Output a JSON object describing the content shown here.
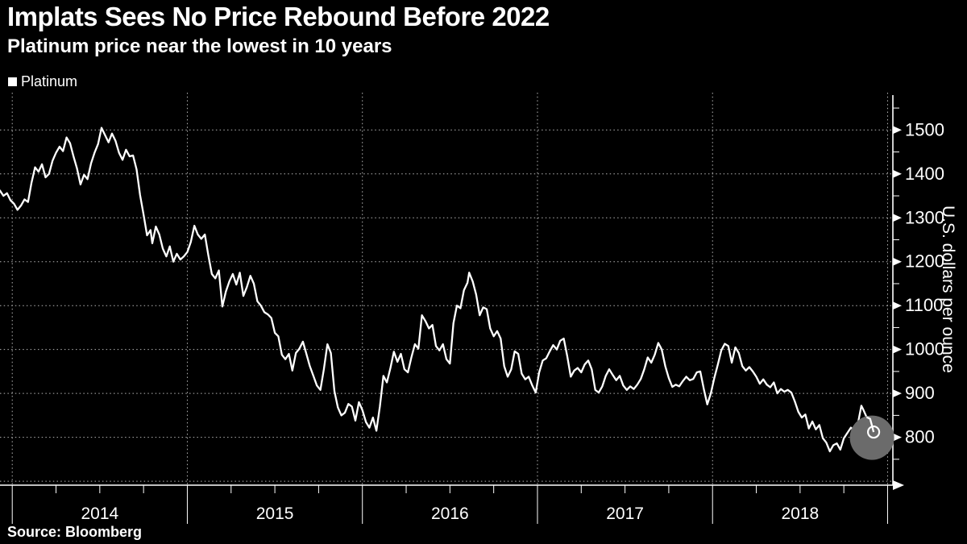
{
  "header": {
    "title": "Implats Sees No Price Rebound Before 2022",
    "subtitle": "Platinum price near the lowest in 10 years"
  },
  "legend": {
    "items": [
      {
        "label": "Platinum",
        "swatch_color": "#ffffff"
      }
    ]
  },
  "source": {
    "text": "Source: Bloomberg"
  },
  "colors": {
    "background": "#000000",
    "foreground": "#ffffff",
    "grid": "#b5b5b5",
    "halo": "#6b6b6b"
  },
  "chart_data": {
    "type": "line",
    "title": "Implats Sees No Price Rebound Before 2022",
    "subtitle": "Platinum price near the lowest in 10 years",
    "xlabel": "",
    "ylabel": "U.S. dollars per ounce",
    "legend_position": "top-left",
    "grid": true,
    "xlim": [
      2013.93,
      2019.03
    ],
    "ylim": [
      691,
      1585
    ],
    "x_tick_labels": [
      "2014",
      "2015",
      "2016",
      "2017",
      "2018"
    ],
    "x_gridline_years": [
      2014,
      2015,
      2016,
      2017,
      2018,
      2019
    ],
    "x_minor_interval": 0.25,
    "y_ticks": [
      800,
      900,
      1000,
      1100,
      1200,
      1300,
      1400,
      1500
    ],
    "y_gridlines": [
      700,
      800,
      900,
      1000,
      1100,
      1200,
      1300,
      1400,
      1500
    ],
    "y_minor_ticks": [
      750,
      850,
      950,
      1050,
      1150,
      1250,
      1350,
      1450,
      1550
    ],
    "highlight": {
      "x": 2018.92,
      "value": 812
    },
    "series": [
      {
        "name": "Platinum",
        "color": "#ffffff",
        "points": [
          [
            2013.93,
            1362
          ],
          [
            2013.95,
            1350
          ],
          [
            2013.97,
            1356
          ],
          [
            2013.99,
            1340
          ],
          [
            2014.01,
            1332
          ],
          [
            2014.03,
            1318
          ],
          [
            2014.05,
            1328
          ],
          [
            2014.07,
            1342
          ],
          [
            2014.09,
            1336
          ],
          [
            2014.11,
            1380
          ],
          [
            2014.13,
            1415
          ],
          [
            2014.15,
            1405
          ],
          [
            2014.17,
            1422
          ],
          [
            2014.19,
            1392
          ],
          [
            2014.21,
            1400
          ],
          [
            2014.23,
            1430
          ],
          [
            2014.25,
            1448
          ],
          [
            2014.27,
            1462
          ],
          [
            2014.29,
            1452
          ],
          [
            2014.31,
            1483
          ],
          [
            2014.33,
            1470
          ],
          [
            2014.35,
            1440
          ],
          [
            2014.37,
            1412
          ],
          [
            2014.39,
            1376
          ],
          [
            2014.41,
            1398
          ],
          [
            2014.43,
            1388
          ],
          [
            2014.45,
            1424
          ],
          [
            2014.47,
            1448
          ],
          [
            2014.49,
            1468
          ],
          [
            2014.51,
            1505
          ],
          [
            2014.53,
            1488
          ],
          [
            2014.55,
            1472
          ],
          [
            2014.57,
            1492
          ],
          [
            2014.59,
            1475
          ],
          [
            2014.61,
            1448
          ],
          [
            2014.63,
            1432
          ],
          [
            2014.65,
            1455
          ],
          [
            2014.67,
            1440
          ],
          [
            2014.69,
            1442
          ],
          [
            2014.71,
            1410
          ],
          [
            2014.73,
            1352
          ],
          [
            2014.75,
            1308
          ],
          [
            2014.77,
            1260
          ],
          [
            2014.79,
            1272
          ],
          [
            2014.8,
            1242
          ],
          [
            2014.82,
            1280
          ],
          [
            2014.84,
            1262
          ],
          [
            2014.86,
            1230
          ],
          [
            2014.88,
            1212
          ],
          [
            2014.9,
            1235
          ],
          [
            2014.92,
            1200
          ],
          [
            2014.94,
            1218
          ],
          [
            2014.96,
            1205
          ],
          [
            2014.98,
            1212
          ],
          [
            2015.0,
            1222
          ],
          [
            2015.02,
            1245
          ],
          [
            2015.04,
            1282
          ],
          [
            2015.06,
            1262
          ],
          [
            2015.08,
            1252
          ],
          [
            2015.1,
            1262
          ],
          [
            2015.12,
            1215
          ],
          [
            2015.14,
            1172
          ],
          [
            2015.16,
            1162
          ],
          [
            2015.18,
            1180
          ],
          [
            2015.2,
            1098
          ],
          [
            2015.22,
            1132
          ],
          [
            2015.24,
            1155
          ],
          [
            2015.26,
            1172
          ],
          [
            2015.28,
            1148
          ],
          [
            2015.3,
            1175
          ],
          [
            2015.32,
            1122
          ],
          [
            2015.34,
            1142
          ],
          [
            2015.36,
            1168
          ],
          [
            2015.38,
            1150
          ],
          [
            2015.4,
            1110
          ],
          [
            2015.42,
            1100
          ],
          [
            2015.44,
            1085
          ],
          [
            2015.46,
            1080
          ],
          [
            2015.48,
            1072
          ],
          [
            2015.5,
            1038
          ],
          [
            2015.52,
            1030
          ],
          [
            2015.54,
            988
          ],
          [
            2015.56,
            978
          ],
          [
            2015.58,
            990
          ],
          [
            2015.6,
            952
          ],
          [
            2015.62,
            992
          ],
          [
            2015.64,
            1002
          ],
          [
            2015.66,
            1018
          ],
          [
            2015.68,
            990
          ],
          [
            2015.7,
            962
          ],
          [
            2015.72,
            940
          ],
          [
            2015.74,
            918
          ],
          [
            2015.76,
            908
          ],
          [
            2015.78,
            955
          ],
          [
            2015.8,
            1012
          ],
          [
            2015.82,
            992
          ],
          [
            2015.84,
            905
          ],
          [
            2015.86,
            868
          ],
          [
            2015.88,
            850
          ],
          [
            2015.9,
            856
          ],
          [
            2015.92,
            876
          ],
          [
            2015.94,
            870
          ],
          [
            2015.96,
            838
          ],
          [
            2015.98,
            880
          ],
          [
            2016.0,
            862
          ],
          [
            2016.02,
            835
          ],
          [
            2016.04,
            822
          ],
          [
            2016.06,
            845
          ],
          [
            2016.08,
            815
          ],
          [
            2016.1,
            870
          ],
          [
            2016.12,
            940
          ],
          [
            2016.14,
            925
          ],
          [
            2016.16,
            958
          ],
          [
            2016.18,
            995
          ],
          [
            2016.2,
            972
          ],
          [
            2016.22,
            990
          ],
          [
            2016.24,
            955
          ],
          [
            2016.26,
            948
          ],
          [
            2016.28,
            982
          ],
          [
            2016.3,
            1012
          ],
          [
            2016.32,
            1002
          ],
          [
            2016.34,
            1078
          ],
          [
            2016.36,
            1065
          ],
          [
            2016.38,
            1048
          ],
          [
            2016.4,
            1056
          ],
          [
            2016.42,
            1008
          ],
          [
            2016.44,
            998
          ],
          [
            2016.46,
            1012
          ],
          [
            2016.48,
            978
          ],
          [
            2016.5,
            968
          ],
          [
            2016.52,
            1060
          ],
          [
            2016.54,
            1100
          ],
          [
            2016.56,
            1094
          ],
          [
            2016.58,
            1135
          ],
          [
            2016.6,
            1152
          ],
          [
            2016.61,
            1175
          ],
          [
            2016.63,
            1155
          ],
          [
            2016.65,
            1125
          ],
          [
            2016.67,
            1078
          ],
          [
            2016.69,
            1096
          ],
          [
            2016.71,
            1092
          ],
          [
            2016.73,
            1048
          ],
          [
            2016.75,
            1030
          ],
          [
            2016.77,
            1042
          ],
          [
            2016.79,
            1025
          ],
          [
            2016.81,
            962
          ],
          [
            2016.83,
            938
          ],
          [
            2016.85,
            955
          ],
          [
            2016.87,
            996
          ],
          [
            2016.89,
            990
          ],
          [
            2016.91,
            945
          ],
          [
            2016.93,
            932
          ],
          [
            2016.95,
            938
          ],
          [
            2016.97,
            918
          ],
          [
            2016.99,
            902
          ],
          [
            2017.01,
            948
          ],
          [
            2017.03,
            975
          ],
          [
            2017.05,
            980
          ],
          [
            2017.07,
            996
          ],
          [
            2017.09,
            1010
          ],
          [
            2017.11,
            1000
          ],
          [
            2017.13,
            1020
          ],
          [
            2017.15,
            1025
          ],
          [
            2017.17,
            985
          ],
          [
            2017.19,
            938
          ],
          [
            2017.21,
            952
          ],
          [
            2017.23,
            958
          ],
          [
            2017.25,
            948
          ],
          [
            2017.27,
            966
          ],
          [
            2017.29,
            975
          ],
          [
            2017.31,
            955
          ],
          [
            2017.33,
            908
          ],
          [
            2017.35,
            902
          ],
          [
            2017.37,
            916
          ],
          [
            2017.39,
            940
          ],
          [
            2017.41,
            955
          ],
          [
            2017.43,
            942
          ],
          [
            2017.45,
            930
          ],
          [
            2017.47,
            940
          ],
          [
            2017.49,
            918
          ],
          [
            2017.51,
            908
          ],
          [
            2017.53,
            916
          ],
          [
            2017.55,
            910
          ],
          [
            2017.57,
            920
          ],
          [
            2017.59,
            933
          ],
          [
            2017.61,
            955
          ],
          [
            2017.63,
            982
          ],
          [
            2017.65,
            970
          ],
          [
            2017.67,
            988
          ],
          [
            2017.69,
            1015
          ],
          [
            2017.71,
            1000
          ],
          [
            2017.73,
            962
          ],
          [
            2017.75,
            935
          ],
          [
            2017.77,
            915
          ],
          [
            2017.79,
            920
          ],
          [
            2017.81,
            916
          ],
          [
            2017.83,
            928
          ],
          [
            2017.85,
            938
          ],
          [
            2017.87,
            930
          ],
          [
            2017.89,
            933
          ],
          [
            2017.91,
            948
          ],
          [
            2017.93,
            950
          ],
          [
            2017.95,
            910
          ],
          [
            2017.97,
            875
          ],
          [
            2017.99,
            900
          ],
          [
            2018.01,
            935
          ],
          [
            2018.03,
            965
          ],
          [
            2018.05,
            998
          ],
          [
            2018.07,
            1013
          ],
          [
            2018.09,
            1008
          ],
          [
            2018.11,
            970
          ],
          [
            2018.13,
            1005
          ],
          [
            2018.15,
            992
          ],
          [
            2018.17,
            962
          ],
          [
            2018.19,
            952
          ],
          [
            2018.21,
            960
          ],
          [
            2018.23,
            950
          ],
          [
            2018.25,
            938
          ],
          [
            2018.27,
            922
          ],
          [
            2018.29,
            932
          ],
          [
            2018.31,
            920
          ],
          [
            2018.33,
            914
          ],
          [
            2018.35,
            925
          ],
          [
            2018.37,
            900
          ],
          [
            2018.39,
            910
          ],
          [
            2018.41,
            904
          ],
          [
            2018.43,
            908
          ],
          [
            2018.45,
            902
          ],
          [
            2018.47,
            882
          ],
          [
            2018.49,
            858
          ],
          [
            2018.51,
            845
          ],
          [
            2018.53,
            852
          ],
          [
            2018.55,
            820
          ],
          [
            2018.57,
            836
          ],
          [
            2018.59,
            818
          ],
          [
            2018.61,
            828
          ],
          [
            2018.63,
            798
          ],
          [
            2018.65,
            788
          ],
          [
            2018.67,
            768
          ],
          [
            2018.69,
            782
          ],
          [
            2018.71,
            786
          ],
          [
            2018.73,
            772
          ],
          [
            2018.75,
            798
          ],
          [
            2018.77,
            810
          ],
          [
            2018.79,
            822
          ],
          [
            2018.81,
            815
          ],
          [
            2018.83,
            830
          ],
          [
            2018.85,
            872
          ],
          [
            2018.86,
            864
          ],
          [
            2018.88,
            846
          ],
          [
            2018.9,
            842
          ],
          [
            2018.91,
            828
          ],
          [
            2018.92,
            812
          ]
        ]
      }
    ]
  }
}
